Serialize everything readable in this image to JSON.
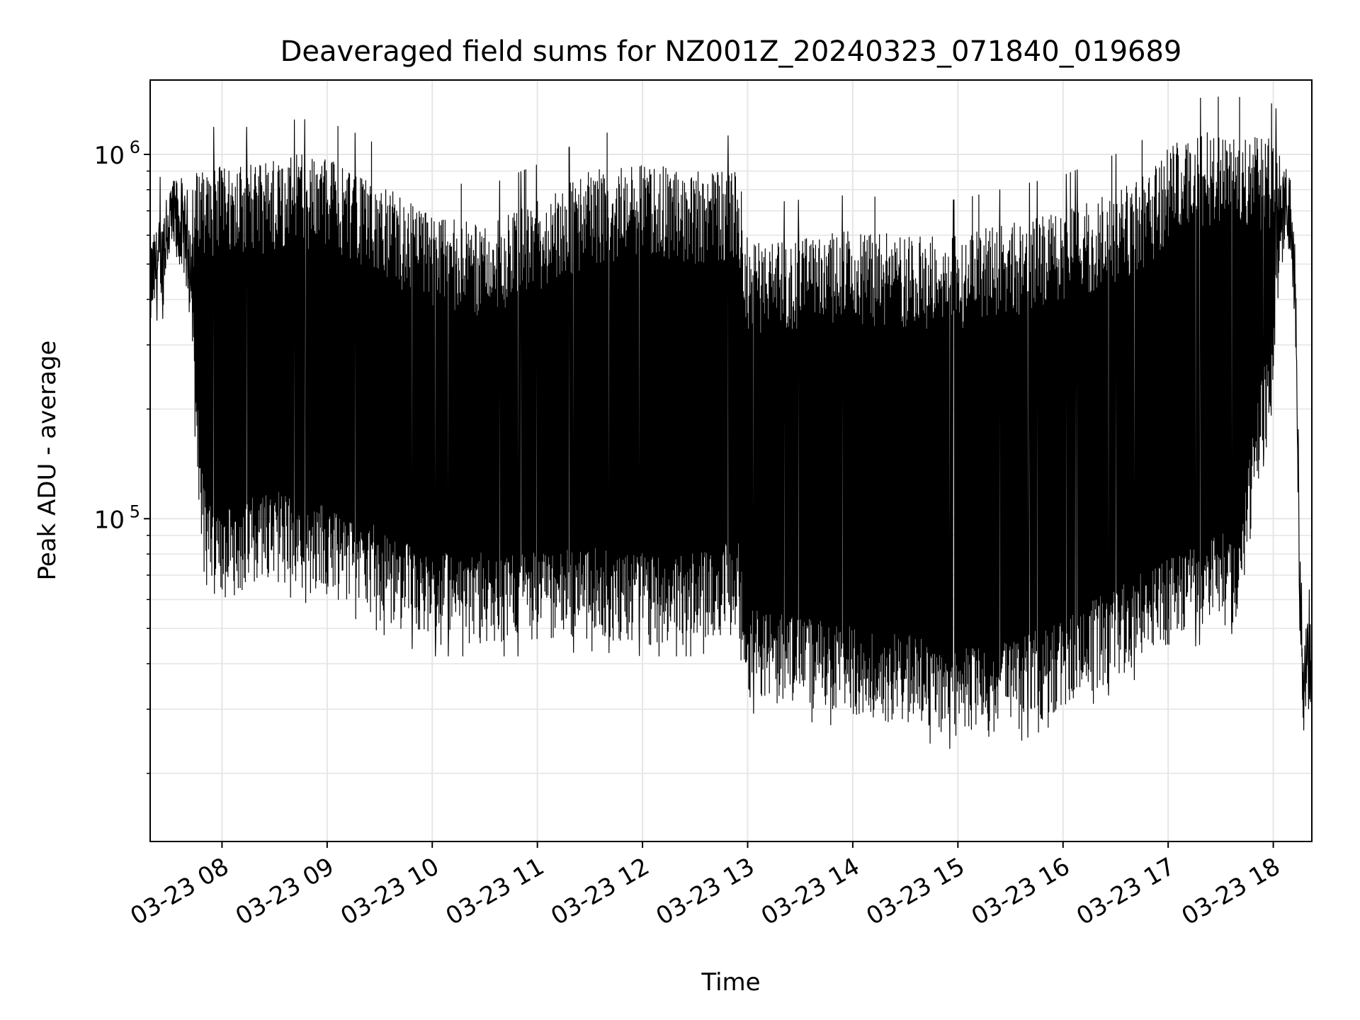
{
  "chart_data": {
    "type": "line",
    "title": "Deaveraged field sums for NZ001Z_20240323_071840_019689",
    "xlabel": "Time",
    "ylabel": "Peak ADU - average",
    "yscale": "log",
    "ylim": [
      13000,
      1600000
    ],
    "xlim": [
      "2024-03-23T07:19:00",
      "2024-03-23T18:22:00"
    ],
    "x_tick_labels": [
      "03-23 08",
      "03-23 09",
      "03-23 10",
      "03-23 11",
      "03-23 12",
      "03-23 13",
      "03-23 14",
      "03-23 15",
      "03-23 16",
      "03-23 17",
      "03-23 18"
    ],
    "x_tick_values": [
      "2024-03-23T08:00:00",
      "2024-03-23T09:00:00",
      "2024-03-23T10:00:00",
      "2024-03-23T11:00:00",
      "2024-03-23T12:00:00",
      "2024-03-23T13:00:00",
      "2024-03-23T14:00:00",
      "2024-03-23T15:00:00",
      "2024-03-23T16:00:00",
      "2024-03-23T17:00:00",
      "2024-03-23T18:00:00"
    ],
    "y_major_ticks": [
      100000,
      1000000
    ],
    "y_tick_labels": [
      "10",
      "10"
    ],
    "y_tick_exponents": [
      "5",
      "6"
    ],
    "grid": true,
    "series_color": "#000000",
    "series": [
      {
        "x": [
          "2024-03-23T07:19:00",
          "2024-03-23T07:25:00",
          "2024-03-23T07:30:00",
          "2024-03-23T07:35:00",
          "2024-03-23T07:40:00",
          "2024-03-23T07:45:00",
          "2024-03-23T07:50:00",
          "2024-03-23T07:55:00",
          "2024-03-23T08:00:00",
          "2024-03-23T08:15:00",
          "2024-03-23T08:30:00",
          "2024-03-23T08:45:00",
          "2024-03-23T09:00:00",
          "2024-03-23T09:20:00",
          "2024-03-23T09:40:00",
          "2024-03-23T10:00:00",
          "2024-03-23T10:30:00",
          "2024-03-23T11:00:00",
          "2024-03-23T11:30:00",
          "2024-03-23T12:00:00",
          "2024-03-23T12:30:00",
          "2024-03-23T12:55:00",
          "2024-03-23T13:00:00",
          "2024-03-23T13:30:00",
          "2024-03-23T14:00:00",
          "2024-03-23T14:30:00",
          "2024-03-23T15:00:00",
          "2024-03-23T15:30:00",
          "2024-03-23T16:00:00",
          "2024-03-23T16:30:00",
          "2024-03-23T16:50:00",
          "2024-03-23T17:00:00",
          "2024-03-23T17:20:00",
          "2024-03-23T17:40:00",
          "2024-03-23T18:00:00",
          "2024-03-23T18:05:00",
          "2024-03-23T18:10:00",
          "2024-03-23T18:13:00",
          "2024-03-23T18:15:00",
          "2024-03-23T18:17:00",
          "2024-03-23T18:20:00",
          "2024-03-23T18:22:00"
        ],
        "low": [
          440000,
          480000,
          600000,
          650000,
          620000,
          200000,
          90000,
          75000,
          80000,
          85000,
          90000,
          85000,
          80000,
          75000,
          65000,
          60000,
          60000,
          60000,
          62000,
          60000,
          60000,
          65000,
          42000,
          40000,
          38000,
          36000,
          33000,
          34000,
          40000,
          48000,
          55000,
          60000,
          65000,
          70000,
          300000,
          600000,
          700000,
          400000,
          60000,
          30000,
          40000,
          48000
        ],
        "high": [
          560000,
          700000,
          900000,
          800000,
          720000,
          900000,
          920000,
          950000,
          950000,
          950000,
          980000,
          1000000,
          980000,
          900000,
          780000,
          680000,
          650000,
          750000,
          900000,
          950000,
          900000,
          900000,
          580000,
          600000,
          620000,
          600000,
          600000,
          650000,
          700000,
          800000,
          900000,
          1050000,
          1150000,
          1150000,
          1100000,
          1000000,
          900000,
          500000,
          100000,
          55000,
          50000,
          54000
        ]
      }
    ]
  }
}
